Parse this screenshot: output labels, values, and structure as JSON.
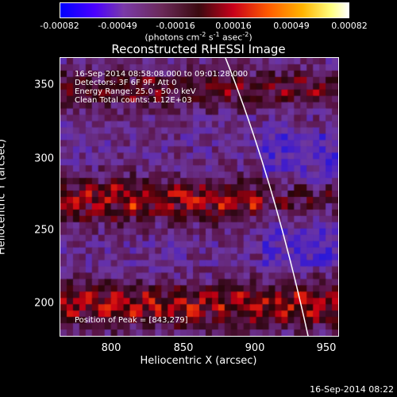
{
  "colorbar": {
    "ticks": [
      "-0.00082",
      "-0.00049",
      "-0.00016",
      "0.00016",
      "0.00049",
      "0.00082"
    ],
    "units_prefix": "(photons cm",
    "units_exp1": "-2",
    "units_mid": " s",
    "units_exp2": "-1",
    "units_mid2": " asec",
    "units_exp3": "-2",
    "units_suffix": ")"
  },
  "title": "Reconstructed RHESSI Image",
  "axes": {
    "xlabel": "Heliocentric X (arcsec)",
    "ylabel": "Heliocentric Y (arcsec)",
    "xticks": [
      "800",
      "850",
      "900",
      "950"
    ],
    "yticks": [
      "350",
      "300",
      "250",
      "200"
    ]
  },
  "annotations": {
    "time_range": "16-Sep-2014 08:58:08.000 to 09:01:28.000",
    "detectors": "Detectors: 3F 6F 9F, Att 0",
    "energy": "Energy Range: 25.0 - 50.0 keV",
    "clean": "Clean     Total counts: 1.12E+03",
    "peak": "Position of Peak = [843,279]"
  },
  "footer": "16-Sep-2014 08:22"
}
